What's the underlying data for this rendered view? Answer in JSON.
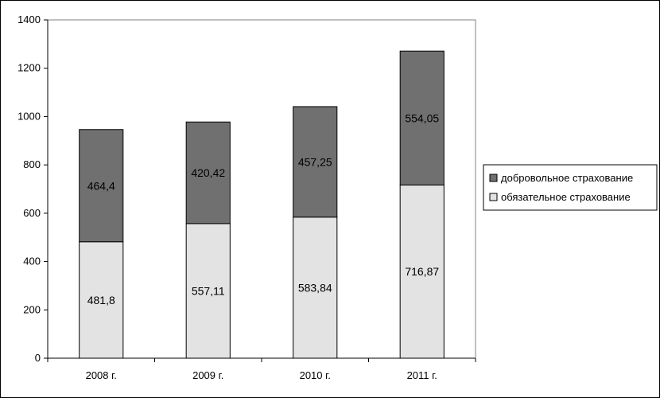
{
  "chart_data": {
    "type": "bar",
    "stacked": true,
    "categories": [
      "2008 г.",
      "2009 г.",
      "2010 г.",
      "2011 г."
    ],
    "series": [
      {
        "name": "обязательное страхование",
        "values": [
          481.8,
          557.11,
          583.84,
          716.87
        ],
        "value_labels": [
          "481,8",
          "557,11",
          "583,84",
          "716,87"
        ],
        "color": "#e3e3e3"
      },
      {
        "name": "добровольное страхование",
        "values": [
          464.4,
          420.42,
          457.25,
          554.05
        ],
        "value_labels": [
          "464,4",
          "420,42",
          "457,25",
          "554,05"
        ],
        "color": "#707070"
      }
    ],
    "ylim": [
      0,
      1400
    ],
    "yticks": [
      "0",
      "200",
      "400",
      "600",
      "800",
      "1000",
      "1200",
      "1400"
    ],
    "grid": false,
    "legend_position": "right",
    "legend_order": [
      "добровольное страхование",
      "обязательное страхование"
    ]
  }
}
